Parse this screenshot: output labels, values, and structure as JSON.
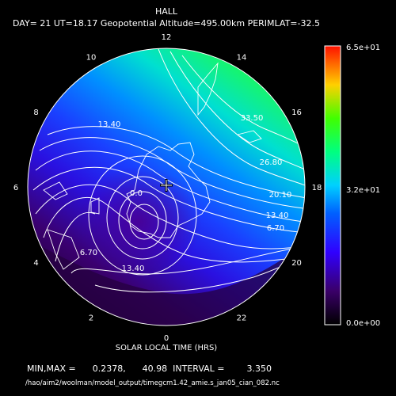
{
  "chart_data": {
    "type": "contour",
    "title": "HALL",
    "subtitle": "DAY= 21 UT=18.17 Geopotential Altitude=495.00km PERIMLAT=-32.5",
    "xlabel": "SOLAR LOCAL TIME (HRS)",
    "hour_ticks": [
      "12",
      "14",
      "16",
      "18",
      "20",
      "22",
      "0",
      "2",
      "4",
      "6",
      "8",
      "10"
    ],
    "contour_labels": [
      "13.40",
      "33.50",
      "26.80",
      "20.10",
      "13.40",
      "6.70",
      "6.70",
      "13.40",
      "0.0"
    ],
    "colorbar": {
      "min_label": "0.0e+00",
      "mid_label": "3.2e+01",
      "max_label": "6.5e+01",
      "min": 0,
      "max": 65
    },
    "min": 0.2378,
    "max": 40.98,
    "interval": 3.35,
    "grid": false
  },
  "footer": {
    "minmax_text": "MIN,MAX =      0.2378,      40.98  INTERVAL =        3.350",
    "path": "/hao/aim2/woolman/model_output/timegcm1.42_amie.s_jan05_cian_082.nc"
  },
  "colors": {
    "background": "#000000",
    "low": "#2a0a40",
    "mid": "#2a2aff",
    "high": "#20ff40"
  },
  "icons": [
    "pole-marker-icon"
  ]
}
